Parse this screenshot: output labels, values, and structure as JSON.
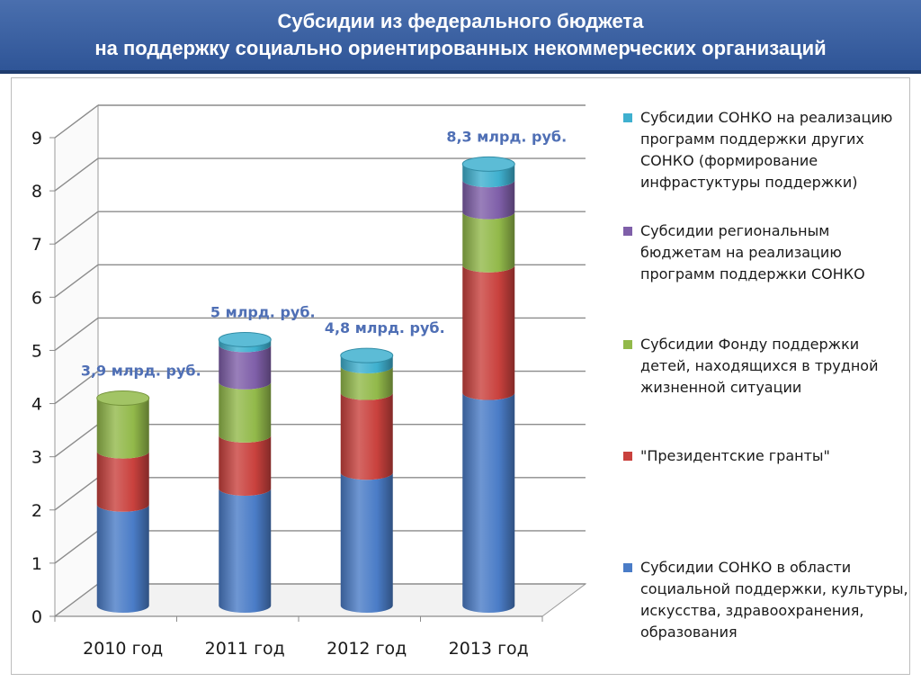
{
  "header": {
    "line1": "Субсидии из федерального бюджета",
    "line2": "на поддержку социально ориентированных некоммерческих организаций"
  },
  "chart_data": {
    "type": "bar",
    "stacked": true,
    "style": "3d-cylinder",
    "categories": [
      "2010 год",
      "2011 год",
      "2012 год",
      "2013 год"
    ],
    "series": [
      {
        "name": "Субсидии СОНКО в области социальной поддержки, культуры, искусства, здравоохранения, образования",
        "color": "#4a7cc7",
        "values": [
          1.9,
          2.2,
          2.5,
          4.0
        ]
      },
      {
        "name": "\"Президентские гранты\"",
        "color": "#c9413d",
        "values": [
          1.0,
          1.0,
          1.5,
          2.4
        ]
      },
      {
        "name": "Субсидии Фонду поддержки детей, находящихся в трудной жизненной ситуации",
        "color": "#92b94a",
        "values": [
          1.0,
          1.0,
          0.5,
          1.0
        ]
      },
      {
        "name": "Субсидии региональным бюджетам на реализацию программ поддержки СОНКО",
        "color": "#7f5fa9",
        "values": [
          0.0,
          0.7,
          0.0,
          0.6
        ]
      },
      {
        "name": "Субсидии СОНКО на реализацию программ поддержки других СОНКО (формирование инфрастуктуры поддержки)",
        "color": "#3fb0cf",
        "values": [
          0.0,
          0.1,
          0.2,
          0.3
        ]
      }
    ],
    "annotations": [
      "3,9 млрд. руб.",
      "5 млрд. руб.",
      "4,8 млрд. руб.",
      "8,3 млрд. руб."
    ],
    "annotation_colors": [
      "#4f6fb5",
      "#4f6fb5",
      "#4f6fb5",
      "#4f6fb5"
    ],
    "y_ticks": [
      "0",
      "1",
      "2",
      "3",
      "4",
      "5",
      "6",
      "7",
      "8",
      "9"
    ],
    "ylim": [
      0,
      9
    ],
    "title": "",
    "xlabel": "",
    "ylabel": "",
    "grid": true,
    "legend": "right"
  }
}
